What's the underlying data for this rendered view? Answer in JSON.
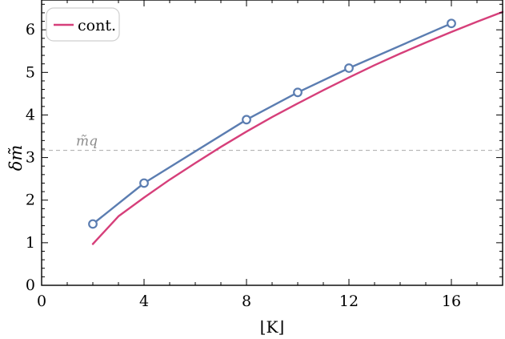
{
  "chart_data": {
    "type": "line",
    "xlabel": "⌊K⌋",
    "ylabel": "δm̃",
    "xlim": [
      0,
      18
    ],
    "ylim": [
      0,
      6.7
    ],
    "xticks": [
      0,
      4,
      8,
      12,
      16
    ],
    "xtick_labels": [
      "0",
      "4",
      "8",
      "12",
      "16"
    ],
    "yticks": [
      0,
      1,
      2,
      3,
      4,
      5,
      6
    ],
    "ytick_labels": [
      "0",
      "1",
      "2",
      "3",
      "4",
      "5",
      "6"
    ],
    "grid": false,
    "legend_position": "top-left",
    "reference_line": {
      "y": 3.17,
      "label": "m̃q",
      "style": "dashed",
      "color": "#aaaaaa"
    },
    "series": [
      {
        "name": "cont.",
        "kind": "line",
        "color": "#d63f7a",
        "x": [
          2,
          3,
          4,
          5,
          6,
          7,
          8,
          9,
          10,
          11,
          12,
          13,
          14,
          15,
          16,
          17,
          18
        ],
        "y": [
          0.97,
          1.62,
          2.06,
          2.48,
          2.87,
          3.25,
          3.61,
          3.95,
          4.27,
          4.58,
          4.88,
          5.17,
          5.44,
          5.7,
          5.95,
          6.19,
          6.42
        ]
      },
      {
        "name": "",
        "kind": "line-markers",
        "color": "#5b7db1",
        "x": [
          2,
          4,
          8,
          10,
          12,
          16
        ],
        "y": [
          1.44,
          2.4,
          3.89,
          4.53,
          5.1,
          6.15
        ]
      }
    ]
  }
}
